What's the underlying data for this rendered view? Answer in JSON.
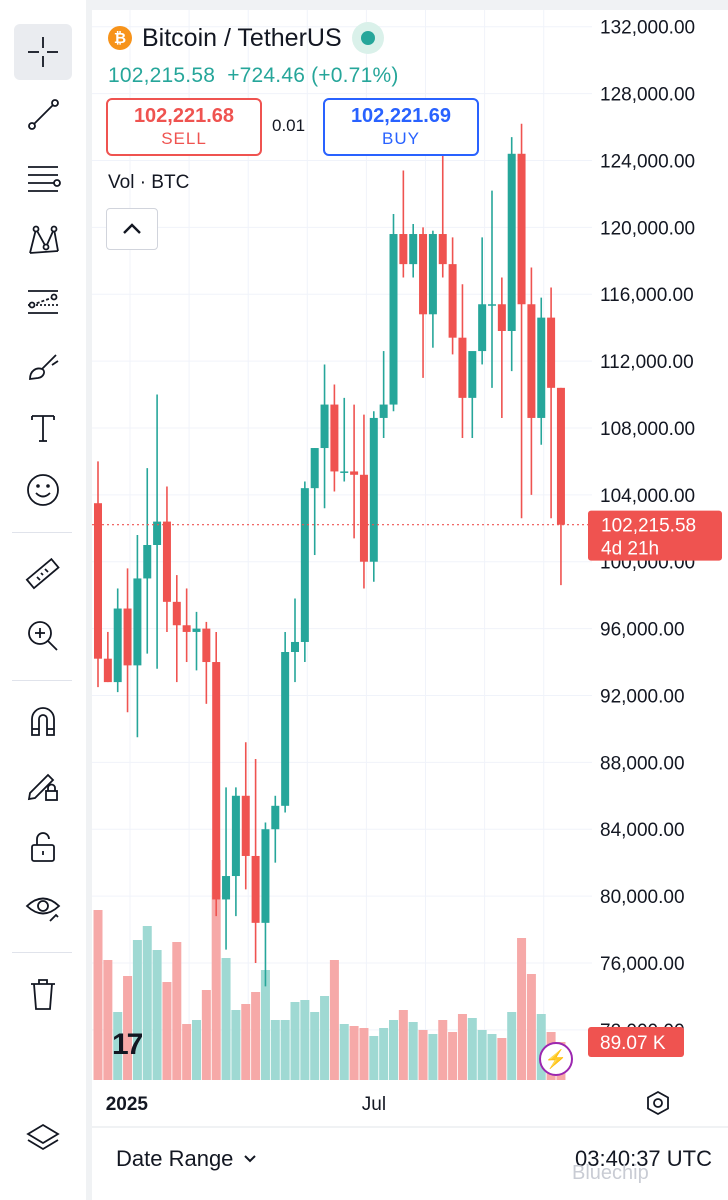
{
  "header": {
    "title": "Bitcoin / TetherUS",
    "coin_badge": "₿",
    "last_price": "102,215.58",
    "change": "+724.46 (+0.71%)",
    "sell_price": "102,221.68",
    "sell_label": "SELL",
    "buy_price": "102,221.69",
    "buy_label": "BUY",
    "spread": "0.01",
    "volume_label": "Vol · BTC"
  },
  "price_tag": {
    "price": "102,215.58",
    "countdown": "4d 21h"
  },
  "volume_tag": "89.07 K",
  "footer": {
    "date_range": "Date Range",
    "clock": "03:40:37 UTC",
    "watermark": "Bluechip"
  },
  "logo": "17",
  "colors": {
    "up": "#26a69a",
    "down": "#ef5350",
    "up_vol": "#9fd9d3",
    "down_vol": "#f6a9a8",
    "accent": "#2962ff"
  },
  "toolbar_icons": [
    "crosshair-icon",
    "trend-line-icon",
    "fib-retracement-icon",
    "xabcd-pattern-icon",
    "projection-icon",
    "brush-icon",
    "text-icon",
    "emoji-icon",
    "ruler-icon",
    "zoom-in-icon",
    "magnet-icon",
    "lock-drawing-icon",
    "unlock-icon",
    "eye-icon",
    "trash-icon",
    "layers-icon"
  ],
  "chart_data": {
    "type": "candlestick",
    "y_ticks": [
      "132,000.00",
      "128,000.00",
      "124,000.00",
      "120,000.00",
      "116,000.00",
      "112,000.00",
      "108,000.00",
      "104,000.00",
      "100,000.00",
      "96,000.00",
      "92,000.00",
      "88,000.00",
      "84,000.00",
      "80,000.00",
      "76,000.00",
      "72,000.00"
    ],
    "y_tick_values": [
      132000,
      128000,
      124000,
      120000,
      116000,
      112000,
      108000,
      104000,
      100000,
      96000,
      92000,
      88000,
      84000,
      80000,
      76000,
      72000
    ],
    "ylim": [
      69000,
      133000
    ],
    "x_ticks": [
      {
        "label": "2025",
        "index": 2
      },
      {
        "label": "Jul",
        "index": 28
      }
    ],
    "last_price": 102215.58,
    "candles": [
      {
        "o": 103500,
        "h": 106000,
        "l": 92500,
        "c": 94200,
        "v": 0.85
      },
      {
        "o": 94200,
        "h": 95800,
        "l": 92800,
        "c": 92800,
        "v": 0.6
      },
      {
        "o": 92800,
        "h": 98400,
        "l": 92200,
        "c": 97200,
        "v": 0.34
      },
      {
        "o": 97200,
        "h": 99600,
        "l": 91000,
        "c": 93800,
        "v": 0.52
      },
      {
        "o": 93800,
        "h": 101600,
        "l": 89500,
        "c": 99000,
        "v": 0.7
      },
      {
        "o": 99000,
        "h": 105600,
        "l": 94500,
        "c": 101000,
        "v": 0.77
      },
      {
        "o": 101000,
        "h": 110000,
        "l": 93600,
        "c": 102400,
        "v": 0.65
      },
      {
        "o": 102400,
        "h": 104500,
        "l": 95800,
        "c": 97600,
        "v": 0.49
      },
      {
        "o": 97600,
        "h": 99200,
        "l": 92800,
        "c": 96200,
        "v": 0.69
      },
      {
        "o": 96200,
        "h": 98400,
        "l": 94000,
        "c": 95800,
        "v": 0.28
      },
      {
        "o": 95800,
        "h": 97000,
        "l": 93500,
        "c": 96000,
        "v": 0.3
      },
      {
        "o": 96000,
        "h": 96400,
        "l": 91500,
        "c": 94000,
        "v": 0.45
      },
      {
        "o": 94000,
        "h": 95800,
        "l": 78800,
        "c": 79800,
        "v": 1.1
      },
      {
        "o": 79800,
        "h": 86500,
        "l": 76800,
        "c": 81200,
        "v": 0.61
      },
      {
        "o": 81200,
        "h": 86500,
        "l": 78800,
        "c": 86000,
        "v": 0.35
      },
      {
        "o": 86000,
        "h": 89200,
        "l": 80400,
        "c": 82400,
        "v": 0.38
      },
      {
        "o": 82400,
        "h": 88200,
        "l": 76000,
        "c": 78400,
        "v": 0.44
      },
      {
        "o": 78400,
        "h": 84400,
        "l": 74600,
        "c": 84000,
        "v": 0.55
      },
      {
        "o": 84000,
        "h": 86000,
        "l": 82000,
        "c": 85400,
        "v": 0.3
      },
      {
        "o": 85400,
        "h": 95800,
        "l": 85000,
        "c": 94600,
        "v": 0.3
      },
      {
        "o": 94600,
        "h": 97800,
        "l": 92800,
        "c": 95200,
        "v": 0.39
      },
      {
        "o": 95200,
        "h": 104800,
        "l": 94000,
        "c": 104400,
        "v": 0.4
      },
      {
        "o": 104400,
        "h": 106800,
        "l": 100400,
        "c": 106800,
        "v": 0.34
      },
      {
        "o": 106800,
        "h": 111800,
        "l": 103200,
        "c": 109400,
        "v": 0.42
      },
      {
        "o": 109400,
        "h": 110600,
        "l": 104200,
        "c": 105400,
        "v": 0.6
      },
      {
        "o": 105400,
        "h": 109800,
        "l": 104800,
        "c": 105400,
        "v": 0.28
      },
      {
        "o": 105400,
        "h": 109400,
        "l": 101400,
        "c": 105200,
        "v": 0.27
      },
      {
        "o": 105200,
        "h": 108800,
        "l": 98400,
        "c": 100000,
        "v": 0.26
      },
      {
        "o": 100000,
        "h": 109000,
        "l": 98800,
        "c": 108600,
        "v": 0.22
      },
      {
        "o": 108600,
        "h": 112600,
        "l": 107400,
        "c": 109400,
        "v": 0.26
      },
      {
        "o": 109400,
        "h": 120800,
        "l": 109000,
        "c": 119600,
        "v": 0.3
      },
      {
        "o": 119600,
        "h": 123400,
        "l": 117000,
        "c": 117800,
        "v": 0.35
      },
      {
        "o": 117800,
        "h": 120200,
        "l": 117000,
        "c": 119600,
        "v": 0.29
      },
      {
        "o": 119600,
        "h": 120000,
        "l": 111000,
        "c": 114800,
        "v": 0.25
      },
      {
        "o": 114800,
        "h": 119800,
        "l": 112800,
        "c": 119600,
        "v": 0.23
      },
      {
        "o": 119600,
        "h": 124600,
        "l": 117000,
        "c": 117800,
        "v": 0.3
      },
      {
        "o": 117800,
        "h": 119400,
        "l": 112400,
        "c": 113400,
        "v": 0.24
      },
      {
        "o": 113400,
        "h": 116600,
        "l": 107400,
        "c": 109800,
        "v": 0.33
      },
      {
        "o": 109800,
        "h": 112400,
        "l": 107400,
        "c": 112600,
        "v": 0.31
      },
      {
        "o": 112600,
        "h": 119400,
        "l": 111800,
        "c": 115400,
        "v": 0.25
      },
      {
        "o": 115400,
        "h": 122200,
        "l": 110400,
        "c": 115400,
        "v": 0.23
      },
      {
        "o": 115400,
        "h": 117000,
        "l": 108600,
        "c": 113800,
        "v": 0.21
      },
      {
        "o": 113800,
        "h": 125400,
        "l": 111400,
        "c": 124400,
        "v": 0.34
      },
      {
        "o": 124400,
        "h": 126200,
        "l": 102600,
        "c": 115400,
        "v": 0.71
      },
      {
        "o": 115400,
        "h": 117600,
        "l": 104000,
        "c": 108600,
        "v": 0.53
      },
      {
        "o": 108600,
        "h": 115800,
        "l": 107000,
        "c": 114600,
        "v": 0.33
      },
      {
        "o": 114600,
        "h": 116400,
        "l": 102600,
        "c": 110400,
        "v": 0.24
      },
      {
        "o": 110400,
        "h": 110400,
        "l": 98600,
        "c": 102216,
        "v": 0.19
      }
    ]
  }
}
